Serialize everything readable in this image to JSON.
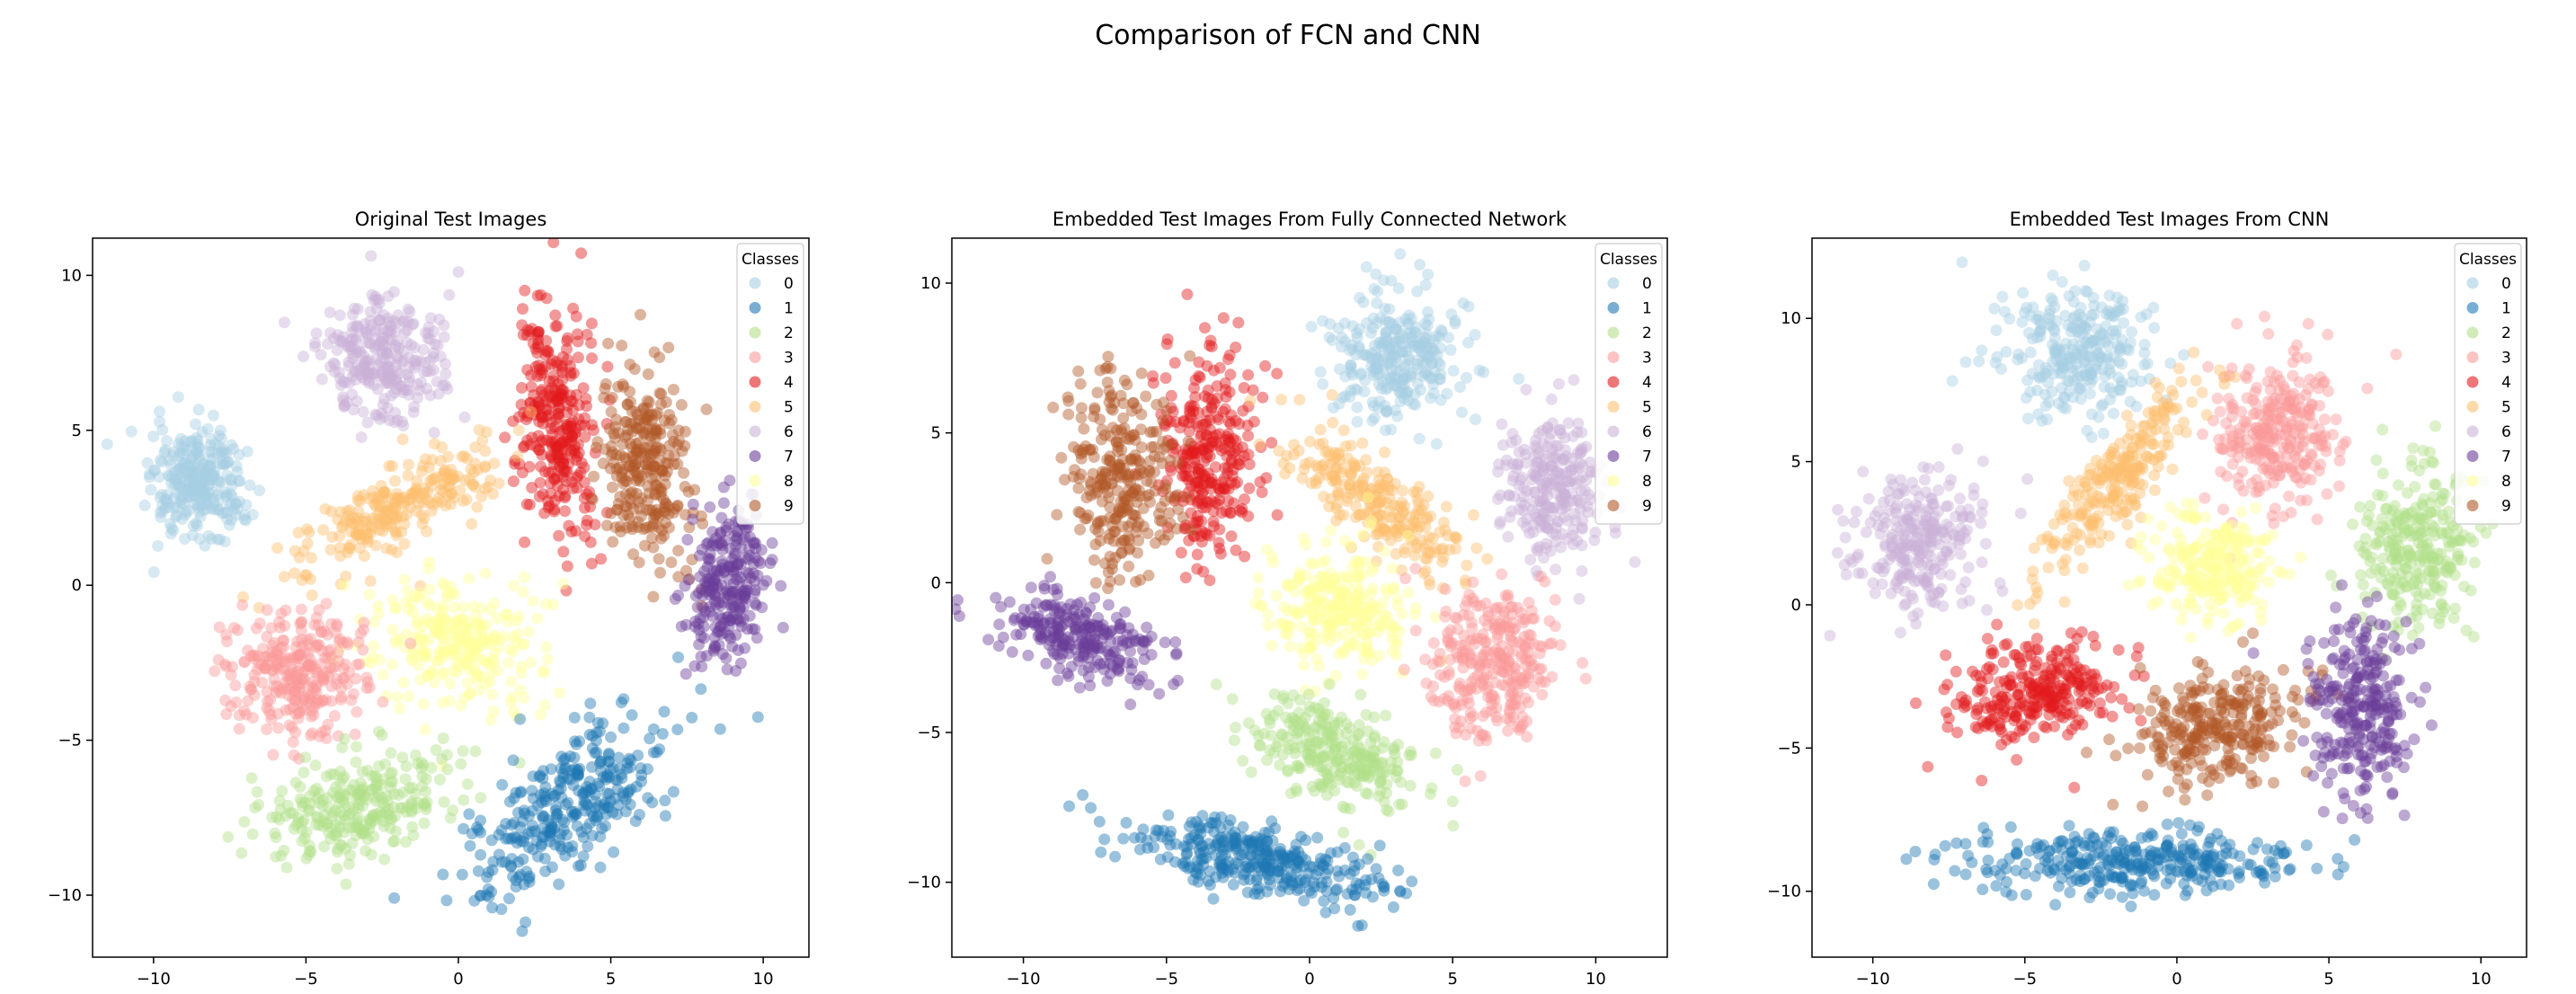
{
  "figure": {
    "title": "Comparison of FCN and CNN"
  },
  "palette": [
    "#a6cee3",
    "#1f78b4",
    "#b2df8a",
    "#fb9a99",
    "#e31a1c",
    "#fdbf6f",
    "#cab2d6",
    "#6a3d9a",
    "#ffff99",
    "#b15928"
  ],
  "chart_data": [
    {
      "type": "scatter",
      "title": "Original Test Images",
      "legend": {
        "title": "Classes",
        "labels": [
          "0",
          "1",
          "2",
          "3",
          "4",
          "5",
          "6",
          "7",
          "8",
          "9"
        ],
        "placement": "top-right"
      },
      "xlim": [
        -12,
        11.5
      ],
      "ylim": [
        -12,
        11.2
      ],
      "xticks": [
        -10,
        -5,
        0,
        5,
        10
      ],
      "yticks": [
        -10,
        -5,
        0,
        5,
        10
      ],
      "clusters": [
        {
          "class": "0",
          "center": [
            -8.5,
            3.2
          ],
          "spread": [
            1.8,
            2.2
          ],
          "angle": 0,
          "n": 280
        },
        {
          "class": "6",
          "center": [
            -2.5,
            7.3
          ],
          "spread": [
            2.4,
            2.4
          ],
          "angle": 0,
          "n": 280
        },
        {
          "class": "4",
          "center": [
            3.2,
            5.2
          ],
          "spread": [
            1.4,
            4.4
          ],
          "angle": 5,
          "n": 300
        },
        {
          "class": "9",
          "center": [
            6.2,
            4.0
          ],
          "spread": [
            1.6,
            4.0
          ],
          "angle": 5,
          "n": 280
        },
        {
          "class": "7",
          "center": [
            8.8,
            0.2
          ],
          "spread": [
            1.5,
            3.2
          ],
          "angle": -10,
          "n": 250
        },
        {
          "class": "5",
          "center": [
            -2.0,
            2.5
          ],
          "spread": [
            4.5,
            1.5
          ],
          "angle": 28,
          "n": 250
        },
        {
          "class": "8",
          "center": [
            0.0,
            -1.8
          ],
          "spread": [
            3.3,
            2.4
          ],
          "angle": 0,
          "n": 260
        },
        {
          "class": "3",
          "center": [
            -5.2,
            -2.9
          ],
          "spread": [
            2.6,
            2.4
          ],
          "angle": 0,
          "n": 290
        },
        {
          "class": "2",
          "center": [
            -3.2,
            -7.1
          ],
          "spread": [
            4.2,
            1.8
          ],
          "angle": 15,
          "n": 270
        },
        {
          "class": "1",
          "center": [
            3.5,
            -7.2
          ],
          "spread": [
            4.8,
            2.0
          ],
          "angle": 38,
          "n": 320
        }
      ]
    },
    {
      "type": "scatter",
      "title": "Embedded Test Images From Fully Connected Network",
      "legend": {
        "title": "Classes",
        "labels": [
          "0",
          "1",
          "2",
          "3",
          "4",
          "5",
          "6",
          "7",
          "8",
          "9"
        ],
        "placement": "top-right"
      },
      "xlim": [
        -12.5,
        12.5
      ],
      "ylim": [
        -12.5,
        11.5
      ],
      "xticks": [
        -10,
        -5,
        0,
        5,
        10
      ],
      "yticks": [
        -10,
        -5,
        0,
        5,
        10
      ],
      "clusters": [
        {
          "class": "0",
          "center": [
            3.0,
            7.5
          ],
          "spread": [
            2.6,
            2.6
          ],
          "angle": 0,
          "n": 280
        },
        {
          "class": "6",
          "center": [
            8.5,
            3.0
          ],
          "spread": [
            2.0,
            3.0
          ],
          "angle": 0,
          "n": 250
        },
        {
          "class": "4",
          "center": [
            -3.5,
            4.4
          ],
          "spread": [
            2.0,
            4.2
          ],
          "angle": 0,
          "n": 290
        },
        {
          "class": "9",
          "center": [
            -6.5,
            3.5
          ],
          "spread": [
            2.3,
            4.0
          ],
          "angle": 0,
          "n": 280
        },
        {
          "class": "7",
          "center": [
            -8.0,
            -1.8
          ],
          "spread": [
            3.4,
            1.6
          ],
          "angle": -15,
          "n": 250
        },
        {
          "class": "5",
          "center": [
            2.3,
            2.7
          ],
          "spread": [
            4.5,
            1.5
          ],
          "angle": -38,
          "n": 250
        },
        {
          "class": "8",
          "center": [
            1.0,
            -0.8
          ],
          "spread": [
            3.1,
            2.4
          ],
          "angle": 0,
          "n": 260
        },
        {
          "class": "3",
          "center": [
            6.3,
            -2.7
          ],
          "spread": [
            2.6,
            3.1
          ],
          "angle": 0,
          "n": 290
        },
        {
          "class": "2",
          "center": [
            1.0,
            -5.7
          ],
          "spread": [
            3.8,
            1.8
          ],
          "angle": -20,
          "n": 270
        },
        {
          "class": "1",
          "center": [
            -2.0,
            -9.2
          ],
          "spread": [
            5.5,
            1.4
          ],
          "angle": -12,
          "n": 330
        }
      ]
    },
    {
      "type": "scatter",
      "title": "Embedded Test Images From CNN",
      "legend": {
        "title": "Classes",
        "labels": [
          "0",
          "1",
          "2",
          "3",
          "4",
          "5",
          "6",
          "7",
          "8",
          "9"
        ],
        "placement": "top-right"
      },
      "xlim": [
        -12,
        11.5
      ],
      "ylim": [
        -12.3,
        12.8
      ],
      "xticks": [
        -10,
        -5,
        0,
        5,
        10
      ],
      "yticks": [
        -10,
        -5,
        0,
        5,
        10
      ],
      "clusters": [
        {
          "class": "0",
          "center": [
            -3.2,
            8.9
          ],
          "spread": [
            3.0,
            2.7
          ],
          "angle": 0,
          "n": 270
        },
        {
          "class": "6",
          "center": [
            -8.5,
            2.2
          ],
          "spread": [
            2.6,
            3.0
          ],
          "angle": 0,
          "n": 260
        },
        {
          "class": "3",
          "center": [
            3.0,
            6.0
          ],
          "spread": [
            2.6,
            3.1
          ],
          "angle": 0,
          "n": 280
        },
        {
          "class": "2",
          "center": [
            7.8,
            2.0
          ],
          "spread": [
            2.2,
            3.3
          ],
          "angle": 0,
          "n": 270
        },
        {
          "class": "5",
          "center": [
            -1.8,
            4.5
          ],
          "spread": [
            5.0,
            1.3
          ],
          "angle": 52,
          "n": 250
        },
        {
          "class": "8",
          "center": [
            1.2,
            1.3
          ],
          "spread": [
            2.2,
            2.3
          ],
          "angle": 0,
          "n": 240
        },
        {
          "class": "4",
          "center": [
            -4.8,
            -3.0
          ],
          "spread": [
            3.2,
            1.9
          ],
          "angle": 10,
          "n": 280
        },
        {
          "class": "9",
          "center": [
            1.3,
            -4.3
          ],
          "spread": [
            3.6,
            2.2
          ],
          "angle": 25,
          "n": 280
        },
        {
          "class": "7",
          "center": [
            6.1,
            -3.5
          ],
          "spread": [
            2.0,
            3.8
          ],
          "angle": 0,
          "n": 270
        },
        {
          "class": "1",
          "center": [
            -1.5,
            -9.0
          ],
          "spread": [
            6.5,
            1.3
          ],
          "angle": 0,
          "n": 330
        }
      ]
    }
  ]
}
